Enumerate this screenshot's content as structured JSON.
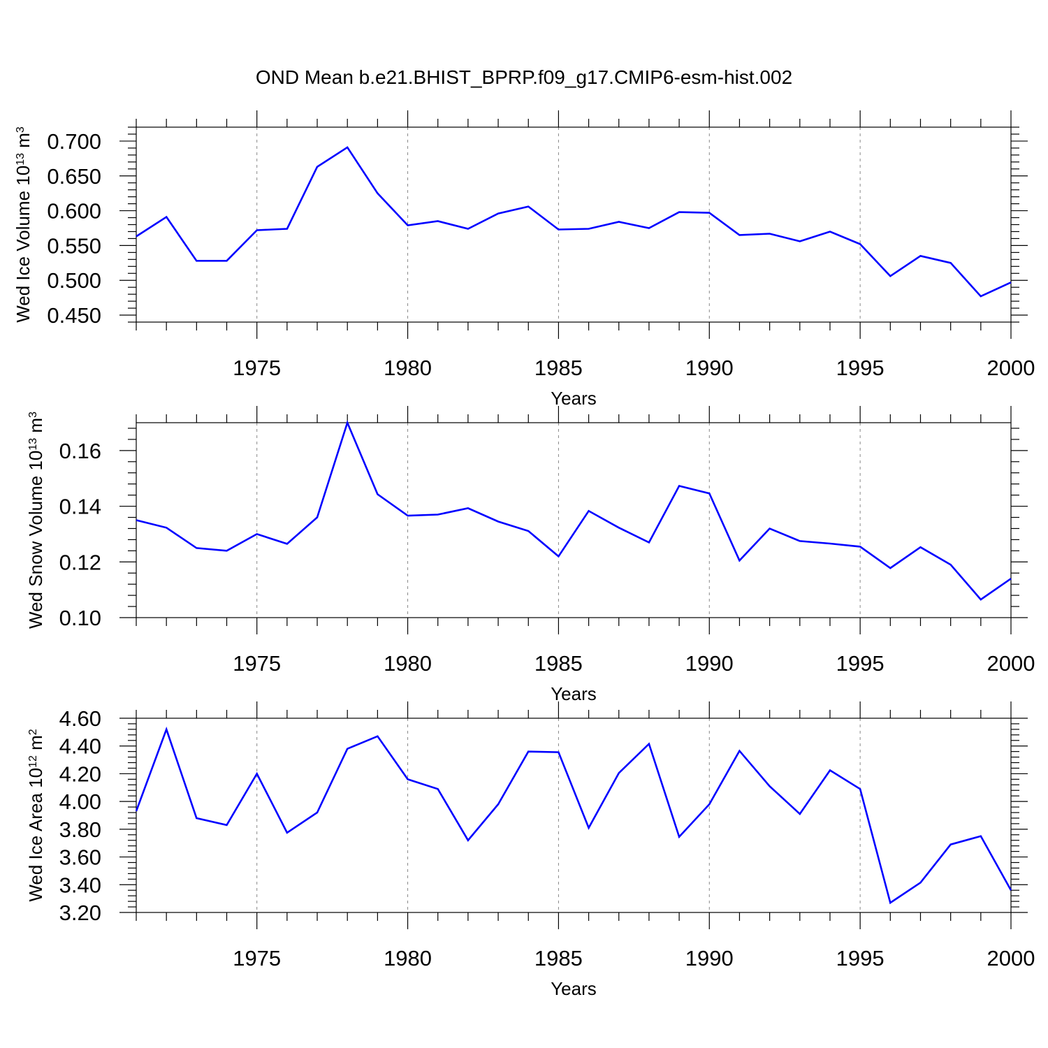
{
  "title": "OND Mean b.e21.BHIST_BPRP.f09_g17.CMIP6-esm-hist.002",
  "line_color": "#0000ff",
  "chart_data": [
    {
      "type": "line",
      "xlabel": "Years",
      "ylabel": "Wed Ice Volume 10",
      "ylabel_exp": "13",
      "ylabel_unit": " m",
      "ylabel_unit_exp": "3",
      "xlim": [
        1971,
        2000
      ],
      "ylim": [
        0.44,
        0.72
      ],
      "xticks": [
        "1975",
        "1980",
        "1985",
        "1990",
        "1995",
        "2000"
      ],
      "yticks": [
        "0.450",
        "0.500",
        "0.550",
        "0.600",
        "0.650",
        "0.700"
      ],
      "grid": "vertical dashed at major x ticks",
      "x": [
        1971,
        1972,
        1973,
        1974,
        1975,
        1976,
        1977,
        1978,
        1979,
        1980,
        1981,
        1982,
        1983,
        1984,
        1985,
        1986,
        1987,
        1988,
        1989,
        1990,
        1991,
        1992,
        1993,
        1994,
        1995,
        1996,
        1997,
        1998,
        1999,
        2000
      ],
      "values": [
        0.563,
        0.591,
        0.528,
        0.528,
        0.572,
        0.574,
        0.663,
        0.691,
        0.625,
        0.579,
        0.585,
        0.574,
        0.596,
        0.606,
        0.573,
        0.574,
        0.584,
        0.575,
        0.598,
        0.597,
        0.565,
        0.567,
        0.556,
        0.57,
        0.552,
        0.506,
        0.535,
        0.525,
        0.477,
        0.497
      ]
    },
    {
      "type": "line",
      "xlabel": "Years",
      "ylabel": "Wed Snow Volume 10",
      "ylabel_exp": "13",
      "ylabel_unit": " m",
      "ylabel_unit_exp": "3",
      "xlim": [
        1971,
        2000
      ],
      "ylim": [
        0.1,
        0.17
      ],
      "xticks": [
        "1975",
        "1980",
        "1985",
        "1990",
        "1995",
        "2000"
      ],
      "yticks": [
        "0.10",
        "0.12",
        "0.14",
        "0.16"
      ],
      "grid": "vertical dashed at major x ticks",
      "x": [
        1971,
        1972,
        1973,
        1974,
        1975,
        1976,
        1977,
        1978,
        1979,
        1980,
        1981,
        1982,
        1983,
        1984,
        1985,
        1986,
        1987,
        1988,
        1989,
        1990,
        1991,
        1992,
        1993,
        1994,
        1995,
        1996,
        1997,
        1998,
        1999,
        2000
      ],
      "values": [
        0.135,
        0.1323,
        0.125,
        0.124,
        0.13,
        0.1265,
        0.136,
        0.17,
        0.1443,
        0.1366,
        0.137,
        0.1393,
        0.1345,
        0.1311,
        0.122,
        0.1383,
        0.1323,
        0.127,
        0.1473,
        0.1446,
        0.1205,
        0.132,
        0.1275,
        0.1266,
        0.1255,
        0.1178,
        0.1253,
        0.119,
        0.1065,
        0.114
      ]
    },
    {
      "type": "line",
      "xlabel": "Years",
      "ylabel": "Wed Ice Area 10",
      "ylabel_exp": "12",
      "ylabel_unit": " m",
      "ylabel_unit_exp": "2",
      "xlim": [
        1971,
        2000
      ],
      "ylim": [
        3.2,
        4.6
      ],
      "xticks": [
        "1975",
        "1980",
        "1985",
        "1990",
        "1995",
        "2000"
      ],
      "yticks": [
        "3.20",
        "3.40",
        "3.60",
        "3.80",
        "4.00",
        "4.20",
        "4.40",
        "4.60"
      ],
      "grid": "vertical dashed at major x ticks",
      "x": [
        1971,
        1972,
        1973,
        1974,
        1975,
        1976,
        1977,
        1978,
        1979,
        1980,
        1981,
        1982,
        1983,
        1984,
        1985,
        1986,
        1987,
        1988,
        1989,
        1990,
        1991,
        1992,
        1993,
        1994,
        1995,
        1996,
        1997,
        1998,
        1999,
        2000
      ],
      "values": [
        3.93,
        4.52,
        3.88,
        3.83,
        4.2,
        3.775,
        3.92,
        4.38,
        4.47,
        4.16,
        4.09,
        3.72,
        3.98,
        4.36,
        4.355,
        3.81,
        4.205,
        4.415,
        3.745,
        3.98,
        4.365,
        4.11,
        3.91,
        4.225,
        4.09,
        3.27,
        3.415,
        3.69,
        3.75,
        3.36
      ]
    }
  ]
}
